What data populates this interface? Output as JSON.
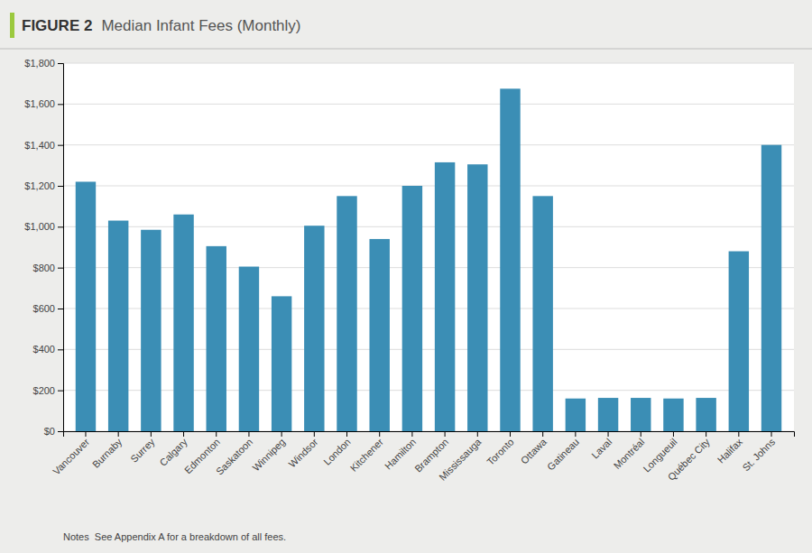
{
  "chart_data": {
    "type": "bar",
    "title": "FIGURE 2",
    "subtitle": "Median Infant Fees (Monthly)",
    "categories": [
      "Vancouver",
      "Burnaby",
      "Surrey",
      "Calgary",
      "Edmonton",
      "Saskatoon",
      "Winnipeg",
      "Windsor",
      "London",
      "Kitchener",
      "Hamilton",
      "Brampton",
      "Mississauga",
      "Toronto",
      "Ottawa",
      "Gatineau",
      "Laval",
      "Montréal",
      "Longueuil",
      "Québec City",
      "Halifax",
      "St. Johns"
    ],
    "values": [
      1220,
      1030,
      985,
      1060,
      905,
      805,
      660,
      1005,
      1150,
      940,
      1200,
      1315,
      1305,
      1675,
      1150,
      160,
      163,
      163,
      160,
      163,
      880,
      1400
    ],
    "color": "#3b8eb5",
    "ylim": [
      0,
      1800
    ],
    "yticks": [
      {
        "value": 0,
        "label": "$0"
      },
      {
        "value": 200,
        "label": "$200"
      },
      {
        "value": 400,
        "label": "$400"
      },
      {
        "value": 600,
        "label": "$600"
      },
      {
        "value": 800,
        "label": "$800"
      },
      {
        "value": 1000,
        "label": "$1,000"
      },
      {
        "value": 1200,
        "label": "$1,200"
      },
      {
        "value": 1400,
        "label": "$1,400"
      },
      {
        "value": 1600,
        "label": "$1,600"
      },
      {
        "value": 1800,
        "label": "$1,800"
      }
    ],
    "grid": true,
    "annotations": [
      "Notes  See Appendix A for a breakdown of all fees."
    ]
  }
}
